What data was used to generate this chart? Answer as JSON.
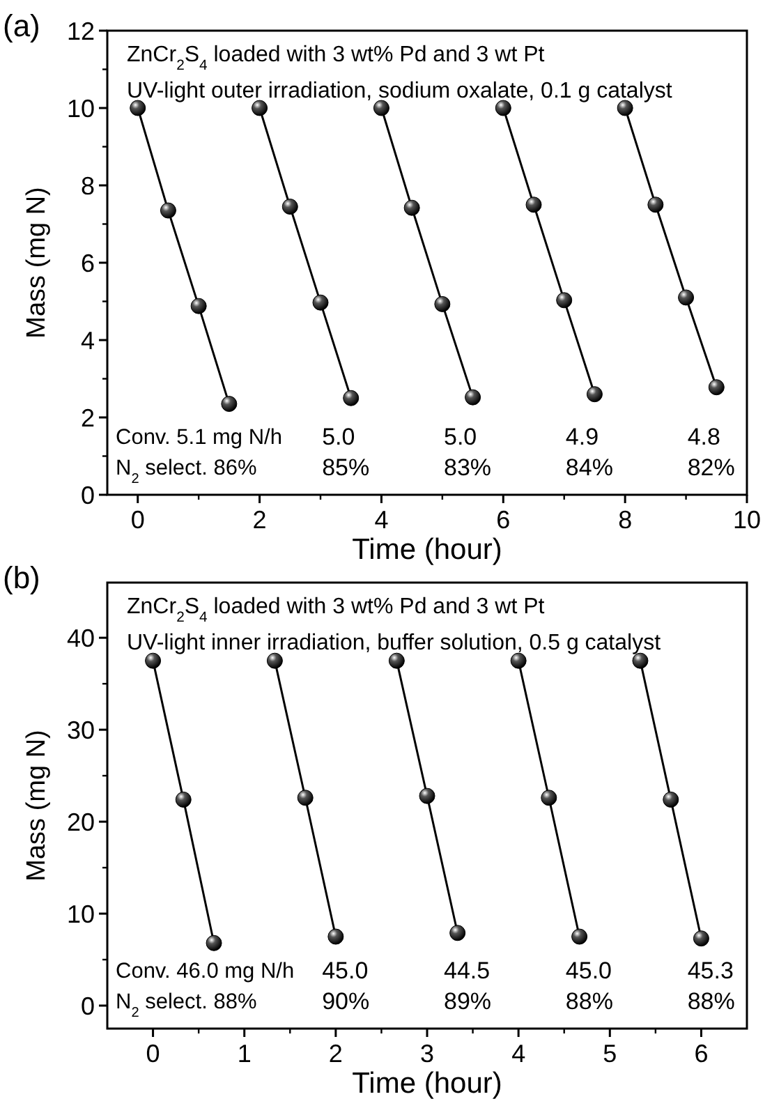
{
  "chart_data": [
    {
      "type": "line",
      "title": "ZnCr$_{2}$S$_{4}$ loaded with 3 wt% Pd and 3 wt Pt",
      "subtitle": "UV-light outer irradiation, sodium oxalate, 0.1 g catalyst",
      "xlabel": "Time (hour)",
      "ylabel": "Mass (mg N)",
      "marker": "circle",
      "line_style": "solid",
      "xlim": [
        -0.5,
        10
      ],
      "xticks": [
        0,
        2,
        4,
        6,
        8,
        10
      ],
      "ylim": [
        0,
        12
      ],
      "yticks": [
        0,
        2,
        4,
        6,
        8,
        10,
        12
      ],
      "series": [
        {
          "color": "#000000",
          "x": [
            0,
            0.5,
            1,
            1.5
          ],
          "values": [
            10,
            7.35,
            4.88,
            2.35
          ]
        },
        {
          "color": "#000000",
          "x": [
            2,
            2.5,
            3,
            3.5
          ],
          "values": [
            10,
            7.45,
            4.97,
            2.5
          ]
        },
        {
          "color": "#000000",
          "x": [
            4,
            4.5,
            5,
            5.5
          ],
          "values": [
            10,
            7.42,
            4.93,
            2.52
          ]
        },
        {
          "color": "#000000",
          "x": [
            6,
            6.5,
            7,
            7.5
          ],
          "values": [
            10,
            7.5,
            5.03,
            2.6
          ]
        },
        {
          "color": "#000000",
          "x": [
            8,
            8.5,
            9,
            9.5
          ],
          "values": [
            10,
            7.5,
            5.1,
            2.78
          ]
        }
      ],
      "annotations": [
        "(a)",
        "Conv. 5.1 mg N/h",
        "N$_{2}$ select. 86%",
        "5.0",
        "85%",
        "5.0",
        "83%",
        "4.9",
        "84%",
        "4.8",
        "82%"
      ]
    },
    {
      "type": "line",
      "title": "ZnCr$_{2}$S$_{4}$ loaded with 3 wt% Pd and 3 wt Pt",
      "subtitle": "UV-light inner irradiation, buffer solution, 0.5 g catalyst",
      "xlabel": "Time (hour)",
      "ylabel": "Mass (mg N)",
      "marker": "circle",
      "line_style": "solid",
      "xlim": [
        -0.5,
        6.5
      ],
      "xticks": [
        0,
        1,
        2,
        3,
        4,
        5,
        6
      ],
      "ylim": [
        -2.5,
        46
      ],
      "yticks": [
        0,
        10,
        20,
        30,
        40
      ],
      "series": [
        {
          "color": "#000000",
          "x": [
            0,
            0.333,
            0.667
          ],
          "values": [
            37.5,
            22.4,
            6.8
          ]
        },
        {
          "color": "#000000",
          "x": [
            1.333,
            1.667,
            2
          ],
          "values": [
            37.5,
            22.6,
            7.5
          ]
        },
        {
          "color": "#000000",
          "x": [
            2.667,
            3,
            3.333
          ],
          "values": [
            37.5,
            22.8,
            7.9
          ]
        },
        {
          "color": "#000000",
          "x": [
            4,
            4.333,
            4.667
          ],
          "values": [
            37.5,
            22.6,
            7.5
          ]
        },
        {
          "color": "#000000",
          "x": [
            5.333,
            5.667,
            6
          ],
          "values": [
            37.5,
            22.4,
            7.3
          ]
        }
      ],
      "annotations": [
        "(b)",
        "Conv. 46.0 mg N/h",
        "N$_{2}$ select. 88%",
        "45.0",
        "90%",
        "44.5",
        "89%",
        "45.0",
        "88%",
        "45.3",
        "88%"
      ]
    }
  ]
}
